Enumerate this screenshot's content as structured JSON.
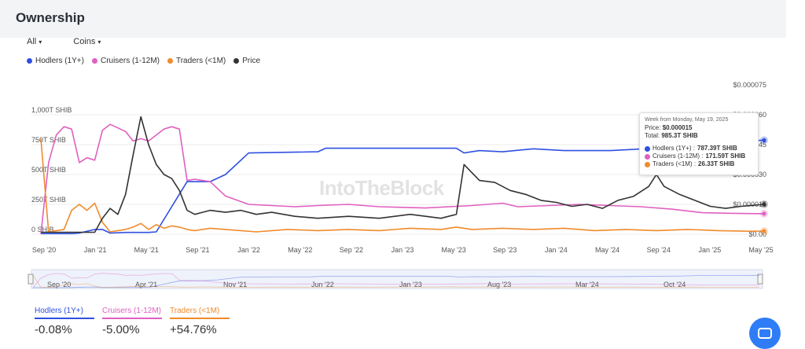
{
  "page": {
    "title": "Ownership"
  },
  "filters": {
    "all_label": "All",
    "coins_label": "Coins"
  },
  "legend": [
    {
      "label": "Hodlers (1Y+)",
      "color": "#2f50e0"
    },
    {
      "label": "Cruisers (1-12M)",
      "color": "#e060c0"
    },
    {
      "label": "Traders (<1M)",
      "color": "#f08a2c"
    },
    {
      "label": "Price",
      "color": "#333333"
    }
  ],
  "watermark": "IntoTheBlock",
  "tooltip": {
    "header": "Week from Monday, May 19, 2025",
    "price_label": "Price:",
    "price_value": "$0.000015",
    "total_label": "Total:",
    "total_value": "985.3T SHIB",
    "rows": [
      {
        "label": "Hodlers (1Y+) :",
        "value": "787.39T SHIB",
        "color": "#2f50e0"
      },
      {
        "label": "Cruisers (1-12M) :",
        "value": "171.59T SHIB",
        "color": "#e060c0"
      },
      {
        "label": "Traders (<1M) :",
        "value": "26.33T SHIB",
        "color": "#f08a2c"
      }
    ]
  },
  "summary": [
    {
      "label": "Hodlers (1Y+)",
      "value": "-0.08%",
      "color": "#2f50e0"
    },
    {
      "label": "Cruisers (1-12M)",
      "value": "-5.00%",
      "color": "#e060c0"
    },
    {
      "label": "Traders (<1M)",
      "value": "+54.76%",
      "color": "#f08a2c"
    }
  ],
  "chart_data": {
    "type": "line",
    "x_ticks": [
      "Sep '20",
      "Jan '21",
      "May '21",
      "Sep '21",
      "Jan '22",
      "May '22",
      "Sep '22",
      "Jan '23",
      "May '23",
      "Sep '23",
      "Jan '24",
      "May '24",
      "Sep '24",
      "Jan '25",
      "May '25"
    ],
    "y_left_ticks": [
      "0 SHIB",
      "250T SHIB",
      "500T SHIB",
      "750T SHIB",
      "1,000T SHIB"
    ],
    "y_left_range": [
      0,
      1000
    ],
    "y_right_ticks": [
      "$0.00",
      "$0.000015",
      "$0.000030",
      "$0.000045",
      "$0.000060",
      "$0.000075"
    ],
    "y_right_range": [
      0,
      7.5e-05
    ],
    "navigator_ticks": [
      "Sep '20",
      "Apr '21",
      "Nov '21",
      "Jun '22",
      "Jan '23",
      "Aug '23",
      "Mar '24",
      "Oct '24"
    ],
    "series": [
      {
        "name": "Hodlers (1Y+)",
        "axis": "left",
        "color": "#2f50e0",
        "values": [
          [
            0,
            5
          ],
          [
            4,
            5
          ],
          [
            5,
            10
          ],
          [
            7,
            40
          ],
          [
            8,
            40
          ],
          [
            9,
            10
          ],
          [
            11,
            15
          ],
          [
            14,
            15
          ],
          [
            15,
            20
          ],
          [
            19,
            440
          ],
          [
            22,
            440
          ],
          [
            24,
            500
          ],
          [
            27,
            680
          ],
          [
            36,
            690
          ],
          [
            37,
            720
          ],
          [
            54,
            720
          ],
          [
            55,
            680
          ],
          [
            57,
            700
          ],
          [
            60,
            690
          ],
          [
            64,
            715
          ],
          [
            68,
            700
          ],
          [
            74,
            700
          ],
          [
            77,
            710
          ],
          [
            82,
            730
          ],
          [
            84,
            745
          ],
          [
            86,
            770
          ],
          [
            90,
            780
          ],
          [
            94,
            787
          ]
        ]
      },
      {
        "name": "Cruisers (1-12M)",
        "axis": "left",
        "color": "#e060c0",
        "values": [
          [
            0,
            0
          ],
          [
            1,
            600
          ],
          [
            2,
            830
          ],
          [
            3,
            900
          ],
          [
            4,
            880
          ],
          [
            5,
            600
          ],
          [
            6,
            640
          ],
          [
            7,
            620
          ],
          [
            8,
            870
          ],
          [
            9,
            920
          ],
          [
            10,
            890
          ],
          [
            11,
            860
          ],
          [
            12,
            780
          ],
          [
            13,
            800
          ],
          [
            14,
            780
          ],
          [
            15,
            830
          ],
          [
            16,
            880
          ],
          [
            17,
            900
          ],
          [
            18,
            880
          ],
          [
            19,
            450
          ],
          [
            20,
            460
          ],
          [
            22,
            440
          ],
          [
            24,
            320
          ],
          [
            27,
            250
          ],
          [
            33,
            230
          ],
          [
            36,
            240
          ],
          [
            40,
            250
          ],
          [
            44,
            230
          ],
          [
            50,
            220
          ],
          [
            56,
            240
          ],
          [
            60,
            260
          ],
          [
            62,
            230
          ],
          [
            66,
            240
          ],
          [
            70,
            250
          ],
          [
            74,
            240
          ],
          [
            78,
            230
          ],
          [
            82,
            210
          ],
          [
            86,
            180
          ],
          [
            90,
            175
          ],
          [
            94,
            172
          ]
        ]
      },
      {
        "name": "Traders (<1M)",
        "axis": "left",
        "color": "#f08a2c",
        "values": [
          [
            0,
            800
          ],
          [
            1,
            20
          ],
          [
            2,
            30
          ],
          [
            3,
            40
          ],
          [
            4,
            200
          ],
          [
            5,
            250
          ],
          [
            6,
            200
          ],
          [
            7,
            260
          ],
          [
            8,
            100
          ],
          [
            9,
            20
          ],
          [
            10,
            30
          ],
          [
            11,
            40
          ],
          [
            12,
            60
          ],
          [
            13,
            90
          ],
          [
            14,
            40
          ],
          [
            15,
            80
          ],
          [
            16,
            50
          ],
          [
            17,
            70
          ],
          [
            18,
            60
          ],
          [
            19,
            40
          ],
          [
            20,
            30
          ],
          [
            22,
            50
          ],
          [
            24,
            40
          ],
          [
            28,
            20
          ],
          [
            32,
            40
          ],
          [
            36,
            30
          ],
          [
            40,
            40
          ],
          [
            44,
            30
          ],
          [
            48,
            50
          ],
          [
            52,
            40
          ],
          [
            54,
            60
          ],
          [
            56,
            40
          ],
          [
            60,
            50
          ],
          [
            64,
            40
          ],
          [
            68,
            50
          ],
          [
            72,
            30
          ],
          [
            76,
            40
          ],
          [
            80,
            30
          ],
          [
            84,
            40
          ],
          [
            88,
            30
          ],
          [
            92,
            25
          ],
          [
            94,
            26
          ]
        ]
      },
      {
        "name": "Price",
        "axis": "right",
        "color": "#333333",
        "values": [
          [
            0,
            1e-06
          ],
          [
            7,
            1e-06
          ],
          [
            8,
            8e-06
          ],
          [
            9,
            1.3e-05
          ],
          [
            10,
            1e-05
          ],
          [
            11,
            2e-05
          ],
          [
            12,
            4e-05
          ],
          [
            13,
            5.9e-05
          ],
          [
            14,
            4.5e-05
          ],
          [
            15,
            3.5e-05
          ],
          [
            16,
            3e-05
          ],
          [
            17,
            2.8e-05
          ],
          [
            18,
            2.2e-05
          ],
          [
            19,
            1.2e-05
          ],
          [
            20,
            1e-05
          ],
          [
            22,
            1.2e-05
          ],
          [
            24,
            1.1e-05
          ],
          [
            26,
            1.2e-05
          ],
          [
            28,
            1e-05
          ],
          [
            30,
            1.1e-05
          ],
          [
            33,
            9e-06
          ],
          [
            36,
            8e-06
          ],
          [
            40,
            9e-06
          ],
          [
            44,
            8e-06
          ],
          [
            48,
            1e-05
          ],
          [
            52,
            8e-06
          ],
          [
            54,
            1e-05
          ],
          [
            55,
            3.5e-05
          ],
          [
            57,
            2.7e-05
          ],
          [
            59,
            2.6e-05
          ],
          [
            61,
            2.2e-05
          ],
          [
            63,
            2e-05
          ],
          [
            65,
            1.7e-05
          ],
          [
            67,
            1.6e-05
          ],
          [
            69,
            1.4e-05
          ],
          [
            71,
            1.5e-05
          ],
          [
            73,
            1.3e-05
          ],
          [
            75,
            1.7e-05
          ],
          [
            77,
            1.9e-05
          ],
          [
            79,
            2.4e-05
          ],
          [
            80,
            3e-05
          ],
          [
            81,
            2.4e-05
          ],
          [
            83,
            2e-05
          ],
          [
            85,
            1.7e-05
          ],
          [
            87,
            1.4e-05
          ],
          [
            89,
            1.3e-05
          ],
          [
            91,
            1.4e-05
          ],
          [
            94,
            1.5e-05
          ]
        ]
      }
    ],
    "x_max": 94
  }
}
